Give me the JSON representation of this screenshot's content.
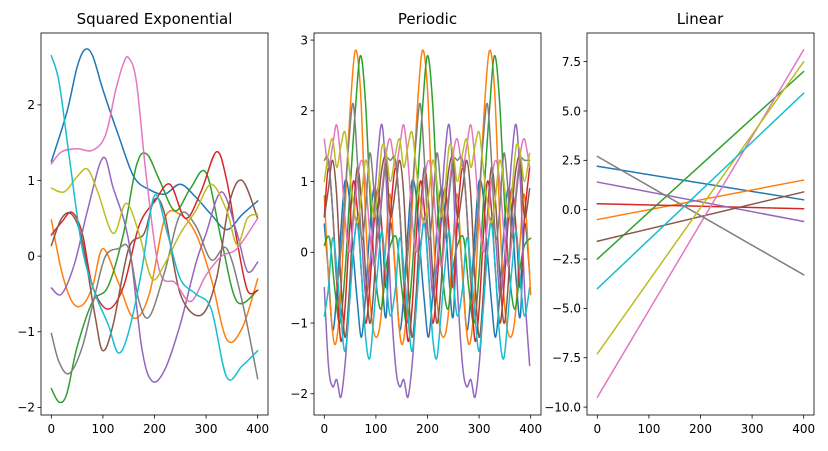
{
  "chart_data": [
    {
      "type": "line",
      "title": "Squared Exponential",
      "xlim": [
        -20,
        420
      ],
      "ylim": [
        -2.1,
        2.95
      ],
      "xticks": [
        0,
        100,
        200,
        300,
        400
      ],
      "yticks": [
        -2,
        -1,
        0,
        1,
        2
      ],
      "series": [
        {
          "color": "#1f77b4",
          "x": [
            0,
            30,
            50,
            65,
            80,
            100,
            130,
            160,
            190,
            220,
            250,
            280,
            310,
            340,
            370,
            400
          ],
          "y": [
            1.25,
            1.9,
            2.5,
            2.73,
            2.65,
            2.2,
            1.6,
            1.05,
            0.88,
            0.82,
            0.95,
            0.78,
            0.55,
            0.35,
            0.55,
            0.73
          ]
        },
        {
          "color": "#ff7f0e",
          "x": [
            0,
            20,
            40,
            60,
            80,
            100,
            130,
            160,
            190,
            220,
            250,
            280,
            310,
            340,
            370,
            400
          ],
          "y": [
            0.48,
            -0.2,
            -0.6,
            -0.65,
            -0.4,
            0.1,
            -0.35,
            -0.82,
            -0.5,
            0.5,
            0.55,
            0.3,
            -0.3,
            -1.1,
            -0.95,
            -0.3
          ]
        },
        {
          "color": "#2ca02c",
          "x": [
            0,
            15,
            30,
            50,
            80,
            110,
            140,
            165,
            185,
            210,
            240,
            270,
            300,
            330,
            360,
            400
          ],
          "y": [
            -1.75,
            -1.93,
            -1.82,
            -1.2,
            -0.6,
            -0.4,
            0.3,
            1.2,
            1.35,
            1.0,
            0.6,
            0.9,
            1.1,
            0.2,
            -0.6,
            -0.45
          ]
        },
        {
          "color": "#d62728",
          "x": [
            0,
            20,
            40,
            60,
            80,
            110,
            140,
            170,
            200,
            230,
            260,
            290,
            320,
            340,
            360,
            380,
            400
          ],
          "y": [
            0.28,
            0.45,
            0.58,
            0.3,
            -0.4,
            -0.7,
            -0.4,
            0.4,
            0.72,
            0.95,
            0.5,
            0.85,
            1.38,
            1.0,
            0.2,
            -0.45,
            -0.45
          ]
        },
        {
          "color": "#9467bd",
          "x": [
            0,
            20,
            45,
            70,
            100,
            120,
            150,
            175,
            195,
            220,
            250,
            280,
            300,
            330,
            360,
            380,
            400
          ],
          "y": [
            -0.42,
            -0.5,
            -0.1,
            0.6,
            1.3,
            0.9,
            0.2,
            -1.2,
            -1.65,
            -1.5,
            -0.9,
            -0.1,
            0.3,
            0.85,
            0.3,
            -0.2,
            -0.08
          ]
        },
        {
          "color": "#8c564b",
          "x": [
            0,
            20,
            40,
            60,
            85,
            100,
            120,
            150,
            180,
            200,
            220,
            250,
            290,
            320,
            345,
            370,
            400
          ],
          "y": [
            0.14,
            0.5,
            0.55,
            0.2,
            -0.8,
            -1.25,
            -0.9,
            0.1,
            0.3,
            0.75,
            0.55,
            -0.5,
            -0.78,
            -0.3,
            0.7,
            1.0,
            0.5
          ]
        },
        {
          "color": "#e377c2",
          "x": [
            0,
            20,
            50,
            80,
            105,
            125,
            140,
            150,
            165,
            185,
            210,
            240,
            270,
            300,
            330,
            360,
            400
          ],
          "y": [
            1.22,
            1.38,
            1.42,
            1.4,
            1.6,
            2.2,
            2.55,
            2.62,
            2.3,
            1.0,
            -0.2,
            -0.35,
            -0.6,
            -0.25,
            0.0,
            0.1,
            0.5
          ]
        },
        {
          "color": "#7f7f7f",
          "x": [
            0,
            15,
            35,
            60,
            85,
            105,
            130,
            150,
            170,
            190,
            220,
            250,
            280,
            310,
            340,
            370,
            400
          ],
          "y": [
            -1.02,
            -1.4,
            -1.55,
            -1.2,
            -0.5,
            0.0,
            0.1,
            0.1,
            -0.6,
            -0.8,
            -0.2,
            0.55,
            0.4,
            -0.05,
            0.1,
            -0.6,
            -1.62
          ]
        },
        {
          "color": "#bcbd22",
          "x": [
            0,
            25,
            50,
            70,
            90,
            120,
            145,
            170,
            195,
            220,
            250,
            280,
            310,
            340,
            360,
            380,
            400
          ],
          "y": [
            0.9,
            0.85,
            1.05,
            1.15,
            0.85,
            0.3,
            0.7,
            0.3,
            -0.3,
            -0.1,
            0.3,
            0.6,
            0.95,
            0.6,
            0.15,
            0.5,
            0.55
          ]
        },
        {
          "color": "#17becf",
          "x": [
            0,
            15,
            35,
            60,
            85,
            110,
            130,
            150,
            175,
            200,
            225,
            250,
            280,
            310,
            340,
            370,
            400
          ],
          "y": [
            2.65,
            2.3,
            1.3,
            0.1,
            -0.5,
            -0.9,
            -1.28,
            -1.0,
            -0.2,
            0.8,
            0.3,
            -0.3,
            -0.5,
            -0.7,
            -1.6,
            -1.45,
            -1.25
          ]
        }
      ]
    },
    {
      "type": "line",
      "title": "Periodic",
      "xlim": [
        -20,
        420
      ],
      "ylim": [
        -2.3,
        3.1
      ],
      "xticks": [
        0,
        100,
        200,
        300,
        400
      ],
      "yticks": [
        -2,
        -1,
        0,
        1,
        2,
        3
      ],
      "period": 130,
      "series": [
        {
          "color": "#1f77b4",
          "x": [
            0,
            8,
            16,
            24,
            32,
            40,
            48,
            56,
            64,
            72,
            80,
            88,
            96,
            104,
            112,
            120,
            128
          ],
          "y": [
            0.4,
            -0.3,
            -1.1,
            -0.6,
            0.3,
            1.0,
            0.8,
            0.0,
            -0.7,
            -1.2,
            -0.6,
            0.3,
            0.9,
            0.5,
            -0.4,
            -0.9,
            0.4
          ]
        },
        {
          "color": "#ff7f0e",
          "x": [
            0,
            10,
            20,
            30,
            40,
            50,
            60,
            70,
            80,
            90,
            100,
            110,
            120,
            128
          ],
          "y": [
            0.8,
            -0.6,
            -1.3,
            -0.8,
            0.6,
            2.0,
            2.85,
            2.3,
            0.5,
            -0.8,
            -1.2,
            -0.9,
            0.2,
            0.8
          ]
        },
        {
          "color": "#2ca02c",
          "x": [
            0,
            10,
            20,
            30,
            40,
            50,
            60,
            70,
            80,
            90,
            100,
            110,
            120,
            128
          ],
          "y": [
            0.1,
            0.2,
            -0.5,
            -1.0,
            -0.3,
            0.9,
            2.0,
            2.78,
            2.1,
            0.6,
            -0.4,
            -0.8,
            -0.2,
            0.1
          ]
        },
        {
          "color": "#d62728",
          "x": [
            0,
            8,
            16,
            24,
            32,
            40,
            48,
            56,
            64,
            72,
            80,
            88,
            96,
            104,
            112,
            120,
            128
          ],
          "y": [
            0.5,
            1.2,
            0.6,
            -0.4,
            -1.25,
            -0.8,
            0.2,
            1.0,
            0.6,
            -0.3,
            -1.0,
            -0.5,
            0.4,
            0.9,
            0.3,
            -0.5,
            0.5
          ]
        },
        {
          "color": "#9467bd",
          "x": [
            0,
            8,
            16,
            24,
            32,
            40,
            48,
            56,
            64,
            72,
            80,
            88,
            96,
            104,
            112,
            120,
            128
          ],
          "y": [
            -0.5,
            -1.6,
            -1.9,
            -1.8,
            -2.05,
            -1.6,
            -0.8,
            0.0,
            0.5,
            0.2,
            -0.6,
            -0.2,
            0.6,
            1.4,
            1.8,
            1.0,
            -0.5
          ]
        },
        {
          "color": "#8c564b",
          "x": [
            0,
            8,
            16,
            24,
            32,
            40,
            48,
            56,
            64,
            72,
            80,
            88,
            96,
            104,
            112,
            120,
            128
          ],
          "y": [
            0.5,
            0.9,
            1.3,
            0.8,
            -0.4,
            -1.2,
            -0.6,
            0.5,
            1.2,
            0.7,
            -0.3,
            -1.0,
            -0.5,
            0.6,
            1.2,
            1.3,
            0.5
          ]
        },
        {
          "color": "#e377c2",
          "x": [
            0,
            8,
            16,
            24,
            32,
            40,
            48,
            56,
            64,
            72,
            80,
            88,
            96,
            104,
            112,
            120,
            128
          ],
          "y": [
            1.6,
            1.2,
            1.5,
            1.8,
            1.3,
            0.5,
            0.0,
            0.4,
            1.0,
            1.3,
            1.0,
            0.3,
            -0.2,
            0.2,
            0.9,
            1.4,
            1.6
          ]
        },
        {
          "color": "#7f7f7f",
          "x": [
            0,
            8,
            16,
            24,
            32,
            40,
            48,
            56,
            64,
            72,
            80,
            88,
            96,
            104,
            112,
            120,
            128
          ],
          "y": [
            1.3,
            1.3,
            0.6,
            -0.4,
            0.0,
            0.8,
            1.6,
            2.1,
            1.3,
            0.2,
            0.6,
            1.4,
            0.9,
            0.2,
            0.8,
            1.3,
            1.3
          ]
        },
        {
          "color": "#bcbd22",
          "x": [
            0,
            8,
            16,
            24,
            32,
            40,
            48,
            56,
            64,
            72,
            80,
            88,
            96,
            104,
            112,
            120,
            128
          ],
          "y": [
            1.0,
            1.4,
            1.6,
            1.2,
            1.5,
            1.7,
            1.2,
            0.7,
            0.4,
            0.8,
            1.3,
            1.0,
            0.5,
            0.9,
            1.5,
            1.4,
            1.0
          ]
        },
        {
          "color": "#17becf",
          "x": [
            0,
            8,
            16,
            24,
            32,
            40,
            48,
            56,
            64,
            72,
            80,
            88,
            96,
            104,
            112,
            120,
            128
          ],
          "y": [
            -0.9,
            -0.5,
            0.2,
            -0.2,
            -0.9,
            -1.4,
            -0.8,
            0.0,
            0.4,
            -0.3,
            -1.2,
            -1.5,
            -0.9,
            -0.2,
            0.3,
            -0.4,
            -0.9
          ]
        }
      ]
    },
    {
      "type": "line",
      "title": "Linear",
      "xlim": [
        -20,
        420
      ],
      "ylim": [
        -10.4,
        8.95
      ],
      "xticks": [
        0,
        100,
        200,
        300,
        400
      ],
      "yticks": [
        -10.0,
        -7.5,
        -5.0,
        -2.5,
        0.0,
        2.5,
        5.0,
        7.5
      ],
      "ytick_labels": [
        "−10.0",
        "−7.5",
        "−5.0",
        "−2.5",
        "0.0",
        "2.5",
        "5.0",
        "7.5"
      ],
      "series": [
        {
          "color": "#1f77b4",
          "x": [
            0,
            400
          ],
          "y": [
            2.2,
            0.5
          ]
        },
        {
          "color": "#ff7f0e",
          "x": [
            0,
            400
          ],
          "y": [
            -0.5,
            1.5
          ]
        },
        {
          "color": "#2ca02c",
          "x": [
            0,
            400
          ],
          "y": [
            -2.5,
            7.0
          ]
        },
        {
          "color": "#d62728",
          "x": [
            0,
            400
          ],
          "y": [
            0.3,
            0.05
          ]
        },
        {
          "color": "#9467bd",
          "x": [
            0,
            400
          ],
          "y": [
            1.4,
            -0.6
          ]
        },
        {
          "color": "#8c564b",
          "x": [
            0,
            400
          ],
          "y": [
            -1.6,
            0.9
          ]
        },
        {
          "color": "#e377c2",
          "x": [
            0,
            400
          ],
          "y": [
            -9.5,
            8.1
          ]
        },
        {
          "color": "#7f7f7f",
          "x": [
            0,
            400
          ],
          "y": [
            2.7,
            -3.3
          ]
        },
        {
          "color": "#bcbd22",
          "x": [
            0,
            400
          ],
          "y": [
            -7.3,
            7.5
          ]
        },
        {
          "color": "#17becf",
          "x": [
            0,
            400
          ],
          "y": [
            -4.0,
            5.9
          ]
        }
      ]
    }
  ]
}
